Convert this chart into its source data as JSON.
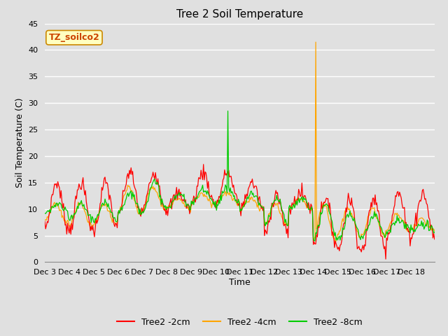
{
  "title": "Tree 2 Soil Temperature",
  "ylabel": "Soil Temperature (C)",
  "xlabel": "Time",
  "annotation_label": "TZ_soilco2",
  "ylim": [
    0,
    45
  ],
  "x_tick_labels": [
    "Dec 3",
    "Dec 4",
    "Dec 5",
    "Dec 6",
    "Dec 7",
    "Dec 8",
    "Dec 9",
    "Dec 10",
    "Dec 11",
    "Dec 12",
    "Dec 13",
    "Dec 14",
    "Dec 15",
    "Dec 16",
    "Dec 17",
    "Dec 18"
  ],
  "bg_color": "#e0e0e0",
  "grid_color": "#ffffff",
  "line_colors": {
    "2cm": "#ff0000",
    "4cm": "#ffa500",
    "8cm": "#00cc00"
  },
  "legend_labels": [
    "Tree2 -2cm",
    "Tree2 -4cm",
    "Tree2 -8cm"
  ],
  "title_fontsize": 11,
  "label_fontsize": 9,
  "tick_fontsize": 8,
  "n_days": 16,
  "pts_per_day": 30
}
